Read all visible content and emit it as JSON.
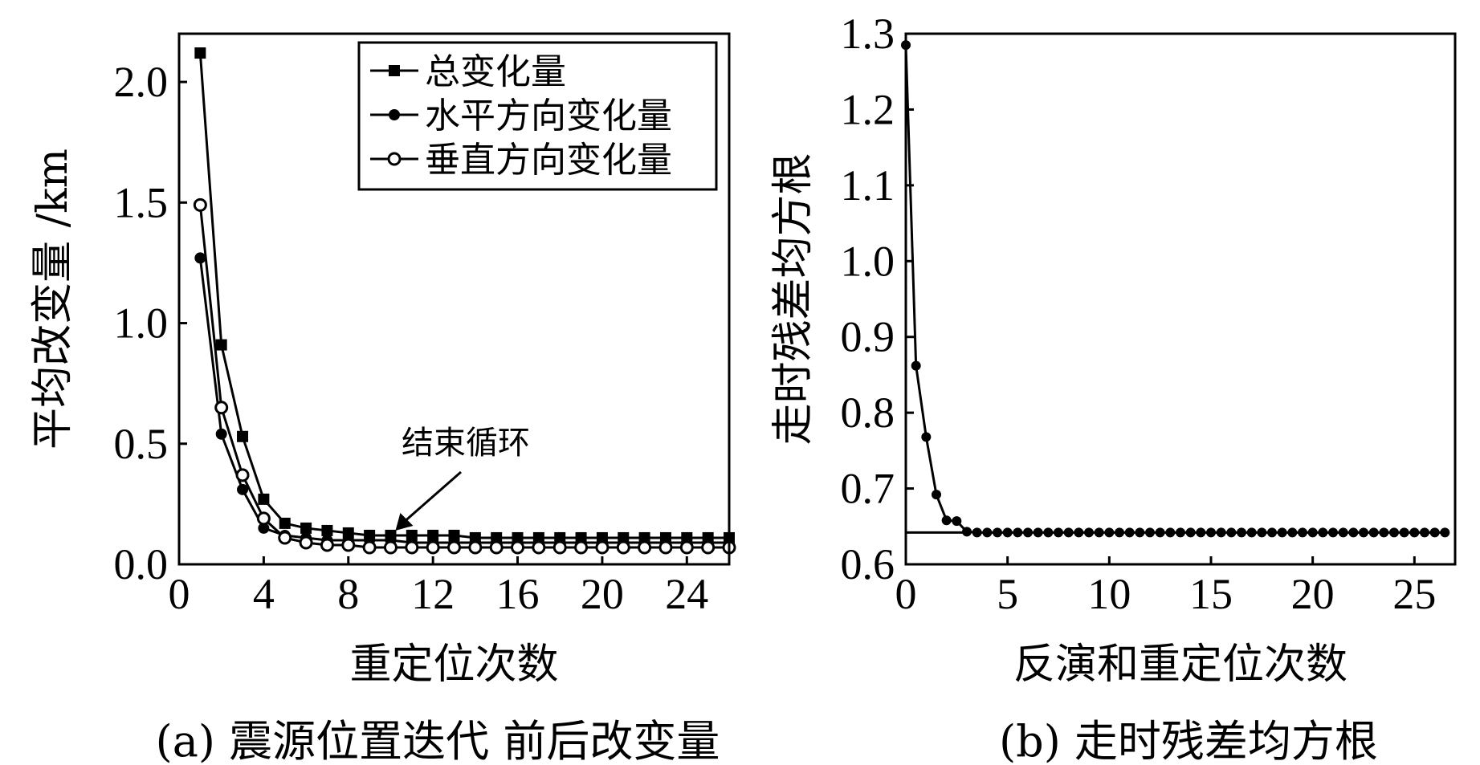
{
  "chart_data": [
    {
      "type": "line",
      "title": "",
      "caption": "(a) 震源位置迭代 前后改变量",
      "xlabel": "重定位次数",
      "ylabel": "平均改变量 /km",
      "xlim": [
        0,
        26
      ],
      "ylim": [
        0,
        2.2
      ],
      "xticks": [
        0,
        4,
        8,
        12,
        16,
        20,
        24
      ],
      "xtick_labels": [
        "0",
        "4",
        "8",
        "12",
        "16",
        "20",
        "24"
      ],
      "yticks": [
        0,
        0.5,
        1.0,
        1.5,
        2.0
      ],
      "ytick_labels": [
        "0.0",
        "0.5",
        "1.0",
        "1.5",
        "2.0"
      ],
      "legend_position": "top-right",
      "x": [
        1,
        2,
        3,
        4,
        5,
        6,
        7,
        8,
        9,
        10,
        11,
        12,
        13,
        14,
        15,
        16,
        17,
        18,
        19,
        20,
        21,
        22,
        23,
        24,
        25,
        26
      ],
      "series": [
        {
          "name": "总变化量",
          "marker": "square-filled",
          "values": [
            2.12,
            0.91,
            0.53,
            0.27,
            0.17,
            0.15,
            0.14,
            0.13,
            0.12,
            0.12,
            0.12,
            0.12,
            0.12,
            0.11,
            0.11,
            0.11,
            0.11,
            0.11,
            0.11,
            0.11,
            0.11,
            0.11,
            0.11,
            0.11,
            0.11,
            0.11
          ]
        },
        {
          "name": "水平方向变化量",
          "marker": "circle-filled",
          "values": [
            1.27,
            0.54,
            0.31,
            0.15,
            0.12,
            0.11,
            0.1,
            0.1,
            0.1,
            0.1,
            0.09,
            0.09,
            0.09,
            0.09,
            0.09,
            0.09,
            0.09,
            0.09,
            0.09,
            0.09,
            0.09,
            0.09,
            0.09,
            0.09,
            0.09,
            0.09
          ]
        },
        {
          "name": "垂直方向变化量",
          "marker": "circle-open",
          "values": [
            1.49,
            0.65,
            0.37,
            0.19,
            0.11,
            0.09,
            0.08,
            0.08,
            0.07,
            0.07,
            0.07,
            0.07,
            0.07,
            0.07,
            0.07,
            0.07,
            0.07,
            0.07,
            0.07,
            0.07,
            0.07,
            0.07,
            0.07,
            0.07,
            0.07,
            0.07
          ]
        }
      ],
      "annotation": {
        "text": "结束循环",
        "points_to_x": 10,
        "points_to_y": 0.12
      }
    },
    {
      "type": "line",
      "title": "",
      "caption": "(b) 走时残差均方根",
      "xlabel": "反演和重定位次数",
      "ylabel": "走时残差均方根",
      "xlim": [
        0,
        27
      ],
      "ylim": [
        0.6,
        1.3
      ],
      "xticks": [
        0,
        5,
        10,
        15,
        20,
        25
      ],
      "xtick_labels": [
        "0",
        "5",
        "10",
        "15",
        "20",
        "25"
      ],
      "yticks": [
        0.6,
        0.7,
        0.8,
        0.9,
        1.0,
        1.1,
        1.2,
        1.3
      ],
      "ytick_labels": [
        "0.6",
        "0.7",
        "0.8",
        "0.9",
        "1.0",
        "1.1",
        "1.2",
        "1.3"
      ],
      "reference_line": {
        "y": 0.642,
        "x_from": 0,
        "x_to": 3
      },
      "series": [
        {
          "name": "",
          "marker": "circle-filled",
          "x": [
            0,
            0.5,
            1,
            1.5,
            2,
            2.5,
            3,
            3.5,
            4,
            4.5,
            5,
            5.5,
            6,
            6.5,
            7,
            7.5,
            8,
            8.5,
            9,
            9.5,
            10,
            10.5,
            11,
            11.5,
            12,
            12.5,
            13,
            13.5,
            14,
            14.5,
            15,
            15.5,
            16,
            16.5,
            17,
            17.5,
            18,
            18.5,
            19,
            19.5,
            20,
            20.5,
            21,
            21.5,
            22,
            22.5,
            23,
            23.5,
            24,
            24.5,
            25,
            25.5,
            26,
            26.5
          ],
          "values": [
            1.285,
            0.862,
            0.768,
            0.692,
            0.658,
            0.657,
            0.643,
            0.642,
            0.642,
            0.642,
            0.642,
            0.642,
            0.642,
            0.642,
            0.642,
            0.642,
            0.642,
            0.642,
            0.642,
            0.642,
            0.642,
            0.642,
            0.642,
            0.642,
            0.642,
            0.642,
            0.642,
            0.642,
            0.642,
            0.642,
            0.642,
            0.642,
            0.642,
            0.642,
            0.642,
            0.642,
            0.642,
            0.642,
            0.642,
            0.642,
            0.642,
            0.642,
            0.642,
            0.642,
            0.642,
            0.642,
            0.642,
            0.642,
            0.642,
            0.642,
            0.642,
            0.642,
            0.642,
            0.642
          ]
        }
      ]
    }
  ]
}
